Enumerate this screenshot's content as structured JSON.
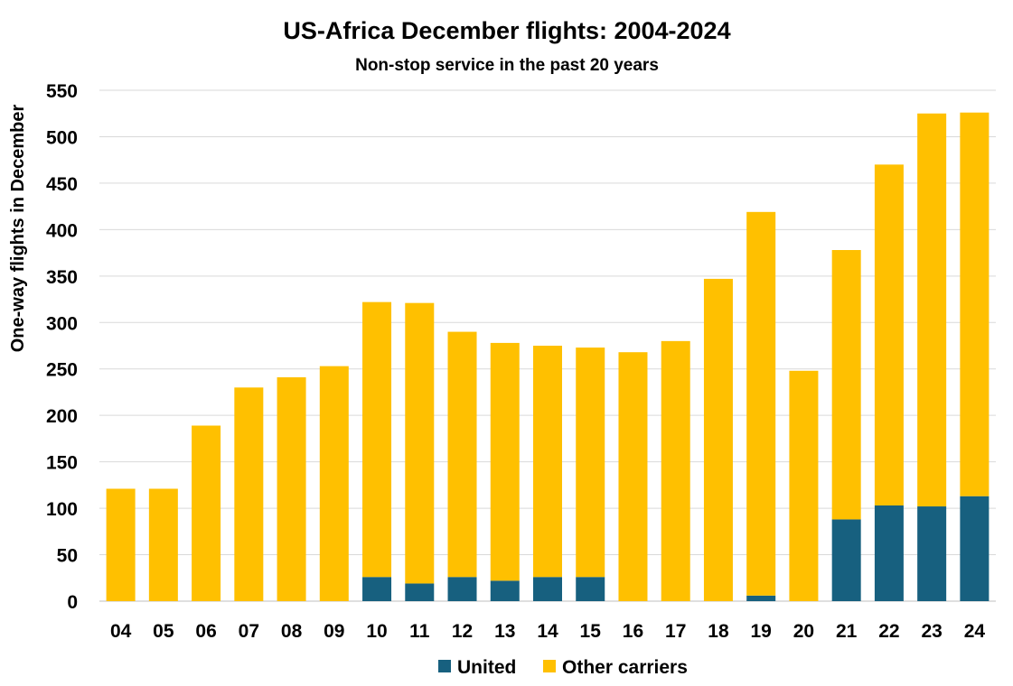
{
  "chart_data": {
    "type": "bar",
    "stacked": true,
    "title": "US-Africa December flights: 2004-2024",
    "subtitle": "Non-stop service in the past 20 years",
    "xlabel": "",
    "ylabel": "One-way flights in December",
    "ylim": [
      0,
      550
    ],
    "yticks": [
      0,
      50,
      100,
      150,
      200,
      250,
      300,
      350,
      400,
      450,
      500,
      550
    ],
    "grid": true,
    "legend_placement": "bottom",
    "categories": [
      "04",
      "05",
      "06",
      "07",
      "08",
      "09",
      "10",
      "11",
      "12",
      "13",
      "14",
      "15",
      "16",
      "17",
      "18",
      "19",
      "20",
      "21",
      "22",
      "23",
      "24"
    ],
    "series": [
      {
        "name": "United",
        "color": "#17607F",
        "values": [
          0,
          0,
          0,
          0,
          0,
          0,
          26,
          19,
          26,
          22,
          26,
          26,
          0,
          0,
          0,
          6,
          0,
          88,
          103,
          102,
          113
        ]
      },
      {
        "name": "Other carriers",
        "color": "#FFC000",
        "values": [
          121,
          121,
          189,
          230,
          241,
          253,
          296,
          302,
          264,
          256,
          249,
          247,
          268,
          280,
          347,
          413,
          248,
          290,
          367,
          423,
          413
        ]
      }
    ]
  }
}
